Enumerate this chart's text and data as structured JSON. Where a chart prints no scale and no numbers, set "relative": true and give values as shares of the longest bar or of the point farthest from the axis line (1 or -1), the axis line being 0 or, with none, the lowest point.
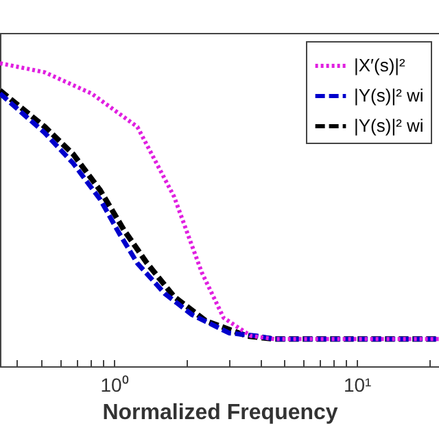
{
  "chart_data": {
    "type": "line",
    "relative": true,
    "xlabel": "Normalized Frequency",
    "log": "x",
    "legend": "top right",
    "xlim": [
      0.34,
      21.8
    ],
    "xticks": [
      {
        "value": 0.4,
        "label": null
      },
      {
        "value": 0.5,
        "label": null
      },
      {
        "value": 0.6,
        "label": null
      },
      {
        "value": 0.7,
        "label": null
      },
      {
        "value": 0.8,
        "label": null
      },
      {
        "value": 0.9,
        "label": null
      },
      {
        "value": 1,
        "label": "10⁰"
      },
      {
        "value": 2,
        "label": null
      },
      {
        "value": 3,
        "label": null
      },
      {
        "value": 4,
        "label": null
      },
      {
        "value": 5,
        "label": null
      },
      {
        "value": 6,
        "label": null
      },
      {
        "value": 7,
        "label": null
      },
      {
        "value": 8,
        "label": null
      },
      {
        "value": 9,
        "label": null
      },
      {
        "value": 10,
        "label": "10¹"
      },
      {
        "value": 20,
        "label": null
      }
    ],
    "series": [
      {
        "name": "|X′(s)|²",
        "color": "#e020e0",
        "line_style": "dotted",
        "x": [
          0.34,
          0.52,
          0.81,
          1.25,
          1.77,
          2.3,
          2.83,
          3.67,
          4.58,
          7.71,
          12.97,
          21.8
        ],
        "values": [
          1.0,
          0.97,
          0.9,
          0.79,
          0.56,
          0.31,
          0.16,
          0.1,
          0.09,
          0.09,
          0.09,
          0.09
        ]
      },
      {
        "name": "|Y(s)|² wi",
        "color": "#0000cc",
        "line_style": "dashed",
        "x": [
          0.34,
          0.52,
          0.68,
          0.88,
          1.05,
          1.25,
          1.62,
          2.1,
          2.98,
          3.87,
          4.58,
          7.71,
          12.97,
          21.8
        ],
        "values": [
          0.9,
          0.77,
          0.67,
          0.55,
          0.44,
          0.34,
          0.24,
          0.17,
          0.11,
          0.1,
          0.09,
          0.09,
          0.09,
          0.09
        ]
      },
      {
        "name": "|Y(s)|² wi",
        "color": "#000000",
        "line_style": "dashed",
        "x": [
          0.34,
          0.52,
          0.68,
          0.88,
          1.1,
          1.37,
          1.77,
          2.39,
          3.53,
          4.58,
          7.71,
          12.97,
          21.8
        ],
        "values": [
          0.91,
          0.79,
          0.7,
          0.58,
          0.45,
          0.34,
          0.23,
          0.15,
          0.1,
          0.09,
          0.09,
          0.09,
          0.09
        ]
      }
    ]
  }
}
